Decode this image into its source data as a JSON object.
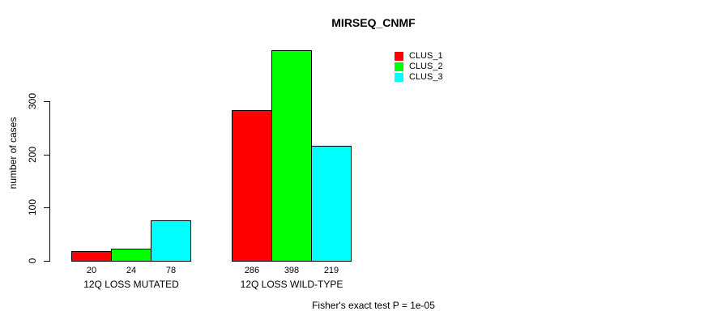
{
  "chart_data": {
    "type": "bar",
    "title": "MIRSEQ_CNMF",
    "ylabel": "number of cases",
    "xlabel": "",
    "categories": [
      "12Q LOSS MUTATED",
      "12Q LOSS WILD-TYPE"
    ],
    "series": [
      {
        "name": "CLUS_1",
        "color": "#FF0000",
        "values": [
          20,
          286
        ]
      },
      {
        "name": "CLUS_2",
        "color": "#00FF00",
        "values": [
          24,
          398
        ]
      },
      {
        "name": "CLUS_3",
        "color": "#00FFFF",
        "values": [
          78,
          219
        ]
      }
    ],
    "bar_value_labels": [
      [
        "20",
        "24",
        "78"
      ],
      [
        "286",
        "398",
        "219"
      ]
    ],
    "y_ticks": [
      0,
      100,
      200,
      300
    ],
    "ylim": [
      0,
      410
    ],
    "grid": false,
    "bar_border_color": "#000000",
    "legend_position": "top-right",
    "legend_entries": [
      "CLUS_1",
      "CLUS_2",
      "CLUS_3"
    ],
    "footnote": "Fisher's exact test P = 1e-05"
  }
}
